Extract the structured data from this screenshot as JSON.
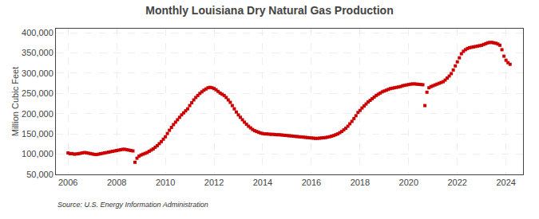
{
  "chart_data": {
    "type": "scatter",
    "title": "Monthly Louisiana Dry Natural Gas Production",
    "ylabel": "Million Cubic Feet",
    "source": "Source: U.S. Energy Information Administration",
    "color": "#cc0000",
    "marker": "square",
    "grid": true,
    "xlim": [
      2005.5,
      2024.7
    ],
    "xticks": [
      2006,
      2008,
      2010,
      2012,
      2014,
      2016,
      2018,
      2020,
      2022,
      2024
    ],
    "ylim": [
      50000,
      410000
    ],
    "yticks": [
      {
        "value": 50000,
        "label": "50,000"
      },
      {
        "value": 100000,
        "label": "100,000"
      },
      {
        "value": 150000,
        "label": "150,000"
      },
      {
        "value": 200000,
        "label": "200,000"
      },
      {
        "value": 250000,
        "label": "250,000"
      },
      {
        "value": 300000,
        "label": "300,000"
      },
      {
        "value": 350000,
        "label": "350,000"
      },
      {
        "value": 400000,
        "label": "400,000"
      }
    ],
    "x": [
      2006.0,
      2006.083,
      2006.167,
      2006.25,
      2006.333,
      2006.417,
      2006.5,
      2006.583,
      2006.667,
      2006.75,
      2006.833,
      2006.917,
      2007.0,
      2007.083,
      2007.167,
      2007.25,
      2007.333,
      2007.417,
      2007.5,
      2007.583,
      2007.667,
      2007.75,
      2007.833,
      2007.917,
      2008.0,
      2008.083,
      2008.167,
      2008.25,
      2008.333,
      2008.417,
      2008.5,
      2008.583,
      2008.667,
      2008.75,
      2008.833,
      2008.917,
      2009.0,
      2009.083,
      2009.167,
      2009.25,
      2009.333,
      2009.417,
      2009.5,
      2009.583,
      2009.667,
      2009.75,
      2009.833,
      2009.917,
      2010.0,
      2010.083,
      2010.167,
      2010.25,
      2010.333,
      2010.417,
      2010.5,
      2010.583,
      2010.667,
      2010.75,
      2010.833,
      2010.917,
      2011.0,
      2011.083,
      2011.167,
      2011.25,
      2011.333,
      2011.417,
      2011.5,
      2011.583,
      2011.667,
      2011.75,
      2011.833,
      2011.917,
      2012.0,
      2012.083,
      2012.167,
      2012.25,
      2012.333,
      2012.417,
      2012.5,
      2012.583,
      2012.667,
      2012.75,
      2012.833,
      2012.917,
      2013.0,
      2013.083,
      2013.167,
      2013.25,
      2013.333,
      2013.417,
      2013.5,
      2013.583,
      2013.667,
      2013.75,
      2013.833,
      2013.917,
      2014.0,
      2014.083,
      2014.167,
      2014.25,
      2014.333,
      2014.417,
      2014.5,
      2014.583,
      2014.667,
      2014.75,
      2014.833,
      2014.917,
      2015.0,
      2015.083,
      2015.167,
      2015.25,
      2015.333,
      2015.417,
      2015.5,
      2015.583,
      2015.667,
      2015.75,
      2015.833,
      2015.917,
      2016.0,
      2016.083,
      2016.167,
      2016.25,
      2016.333,
      2016.417,
      2016.5,
      2016.583,
      2016.667,
      2016.75,
      2016.833,
      2016.917,
      2017.0,
      2017.083,
      2017.167,
      2017.25,
      2017.333,
      2017.417,
      2017.5,
      2017.583,
      2017.667,
      2017.75,
      2017.833,
      2017.917,
      2018.0,
      2018.083,
      2018.167,
      2018.25,
      2018.333,
      2018.417,
      2018.5,
      2018.583,
      2018.667,
      2018.75,
      2018.833,
      2018.917,
      2019.0,
      2019.083,
      2019.167,
      2019.25,
      2019.333,
      2019.417,
      2019.5,
      2019.583,
      2019.667,
      2019.75,
      2019.833,
      2019.917,
      2020.0,
      2020.083,
      2020.167,
      2020.25,
      2020.333,
      2020.417,
      2020.5,
      2020.583,
      2020.667,
      2020.75,
      2020.833,
      2020.917,
      2021.0,
      2021.083,
      2021.167,
      2021.25,
      2021.333,
      2021.417,
      2021.5,
      2021.583,
      2021.667,
      2021.75,
      2021.833,
      2021.917,
      2022.0,
      2022.083,
      2022.167,
      2022.25,
      2022.333,
      2022.417,
      2022.5,
      2022.583,
      2022.667,
      2022.75,
      2022.833,
      2022.917,
      2023.0,
      2023.083,
      2023.167,
      2023.25,
      2023.333,
      2023.417,
      2023.5,
      2023.583,
      2023.667,
      2023.75,
      2023.833,
      2023.917,
      2024.0,
      2024.083,
      2024.167
    ],
    "values": [
      103000,
      101000,
      101500,
      100000,
      100500,
      101000,
      102000,
      103000,
      104000,
      103500,
      102500,
      101500,
      100500,
      99500,
      99000,
      100000,
      101000,
      102000,
      103000,
      104000,
      105000,
      106000,
      107000,
      108000,
      109000,
      110000,
      111000,
      112000,
      112000,
      111000,
      110000,
      109000,
      108000,
      80000,
      90000,
      95000,
      98000,
      100000,
      102000,
      104000,
      107000,
      110000,
      113000,
      117000,
      121000,
      126000,
      131000,
      137000,
      143000,
      151000,
      159000,
      166000,
      173000,
      179000,
      185000,
      191000,
      197000,
      202000,
      207000,
      212000,
      220000,
      227000,
      234000,
      240000,
      245000,
      250000,
      254000,
      258000,
      261000,
      264000,
      265000,
      264000,
      262000,
      259000,
      255000,
      251000,
      248000,
      245000,
      240000,
      234000,
      228000,
      220000,
      212000,
      204000,
      197000,
      191000,
      185000,
      179000,
      174000,
      169000,
      165000,
      161000,
      158000,
      156000,
      154000,
      152000,
      151000,
      150000,
      150000,
      149500,
      149000,
      149000,
      148500,
      148000,
      148000,
      147500,
      147000,
      146500,
      146000,
      145500,
      145000,
      144500,
      144000,
      143500,
      143000,
      142500,
      142000,
      141500,
      141000,
      140500,
      140000,
      139500,
      139000,
      139000,
      139500,
      140000,
      140500,
      141000,
      142000,
      143000,
      144500,
      146000,
      148000,
      150000,
      153000,
      156000,
      160000,
      164000,
      169000,
      175000,
      181000,
      188000,
      195000,
      203000,
      208000,
      214000,
      219000,
      224000,
      229000,
      233000,
      237000,
      241000,
      245000,
      248000,
      251000,
      254000,
      256000,
      258000,
      260000,
      262000,
      263000,
      264000,
      265000,
      266000,
      267000,
      269000,
      270000,
      271000,
      272000,
      273000,
      273500,
      273500,
      273000,
      272500,
      272000,
      271500,
      220000,
      253000,
      264000,
      267000,
      269000,
      271000,
      273000,
      275000,
      277000,
      279000,
      283000,
      288000,
      293000,
      299000,
      308000,
      318000,
      328000,
      338000,
      348000,
      354000,
      358000,
      361000,
      363000,
      364000,
      365000,
      366000,
      367000,
      368000,
      369000,
      371000,
      373000,
      375000,
      376000,
      376000,
      375000,
      374000,
      372000,
      369000,
      358000,
      342000,
      332000,
      326000,
      322000
    ]
  }
}
